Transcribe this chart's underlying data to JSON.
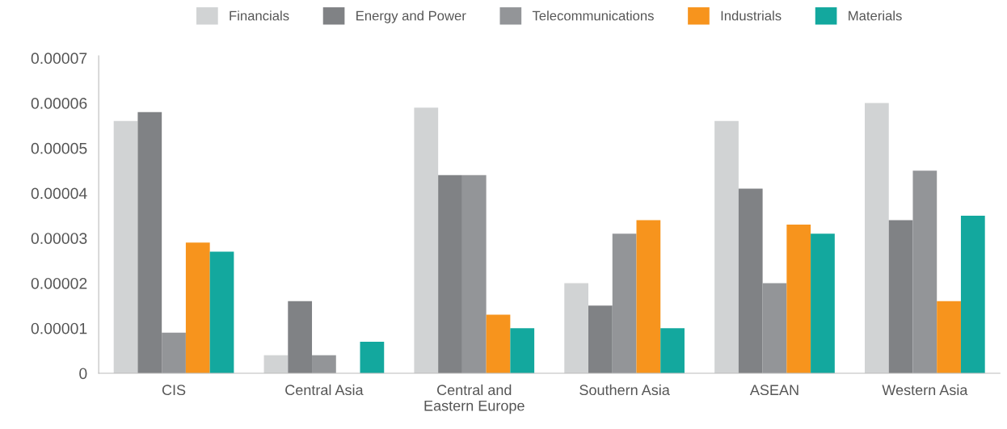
{
  "chart_data": {
    "type": "bar",
    "categories": [
      "CIS",
      "Central Asia",
      "Central and\nEastern Europe",
      "Southern Asia",
      "ASEAN",
      "Western Asia"
    ],
    "series": [
      {
        "name": "Financials",
        "color": "#d1d3d4",
        "values": [
          5.6e-05,
          4e-06,
          5.9e-05,
          2e-05,
          5.6e-05,
          6e-05
        ]
      },
      {
        "name": "Energy and Power",
        "color": "#808285",
        "values": [
          5.8e-05,
          1.6e-05,
          4.4e-05,
          1.5e-05,
          4.1e-05,
          3.4e-05
        ]
      },
      {
        "name": "Telecommunications",
        "color": "#939598",
        "values": [
          9e-06,
          4e-06,
          4.4e-05,
          3.1e-05,
          2e-05,
          4.5e-05
        ]
      },
      {
        "name": "Industrials",
        "color": "#f7941d",
        "values": [
          2.9e-05,
          null,
          1.3e-05,
          3.4e-05,
          3.3e-05,
          1.6e-05
        ]
      },
      {
        "name": "Materials",
        "color": "#13a89e",
        "values": [
          2.7e-05,
          7e-06,
          1e-05,
          1e-05,
          3.1e-05,
          3.5e-05
        ]
      }
    ],
    "ylim": [
      0,
      7.05e-05
    ],
    "yticks": [
      0,
      {
        "value": 1e-05,
        "label": "0.00001"
      },
      {
        "value": 2e-05,
        "label": "0.00002"
      },
      {
        "value": 3e-05,
        "label": "0.00003"
      },
      {
        "value": 4e-05,
        "label": "0.00004"
      },
      {
        "value": 5e-05,
        "label": "0.00005"
      },
      {
        "value": 6e-05,
        "label": "0.00006"
      },
      {
        "value": 7e-05,
        "label": "0.00007"
      }
    ],
    "grid": false,
    "legend": "top"
  }
}
